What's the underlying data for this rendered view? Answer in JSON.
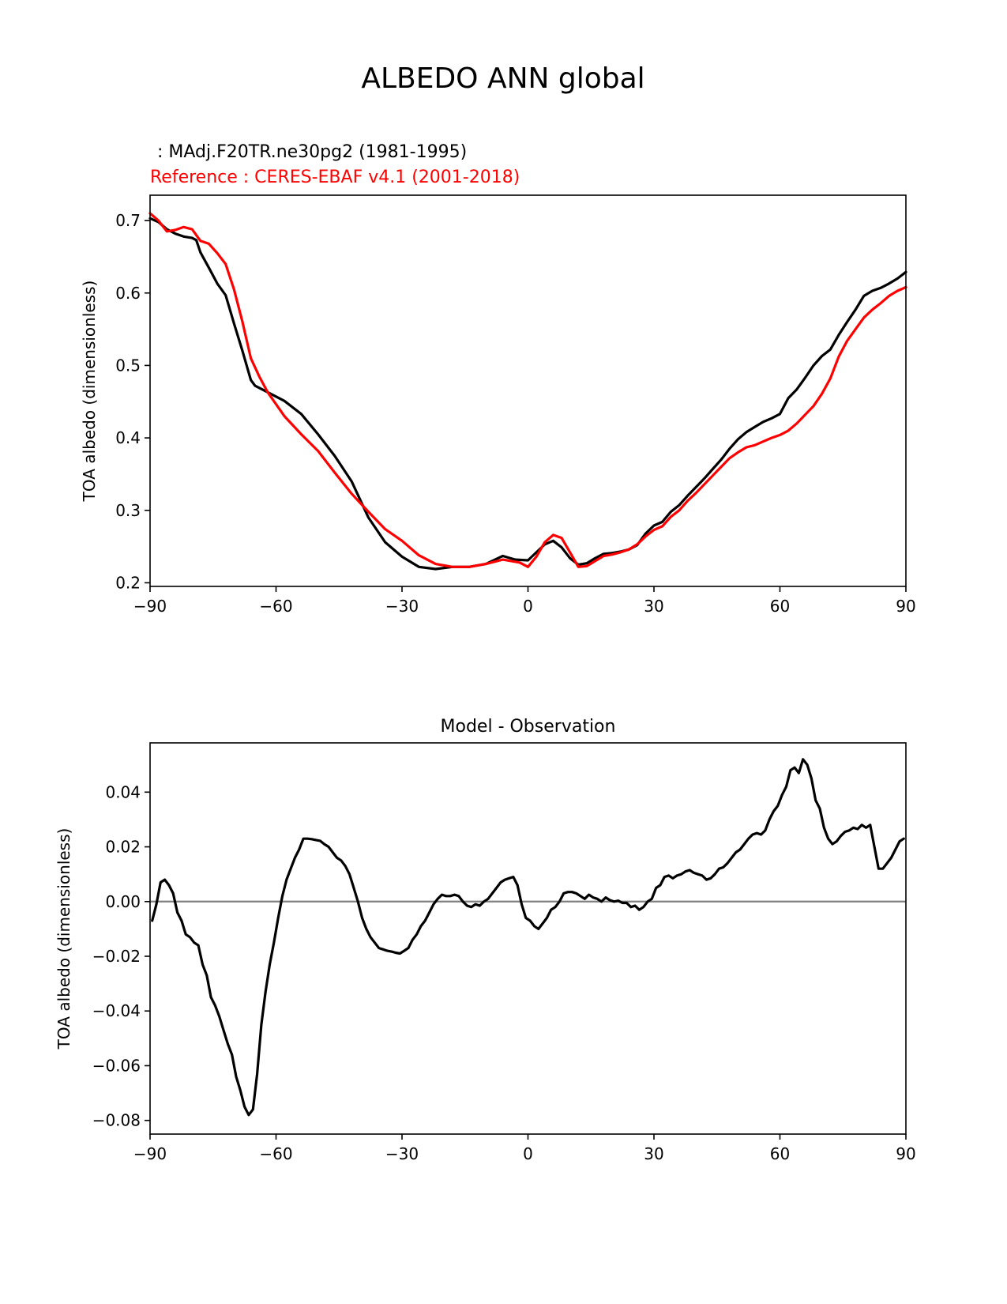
{
  "figure": {
    "title": "ALBEDO ANN global",
    "test_label": " : MAdj.F20TR.ne30pg2 (1981-1995)",
    "ref_label": "Reference : CERES-EBAF v4.1 (2001-2018)"
  },
  "colors": {
    "test": "#000000",
    "reference": "#ff0000",
    "zero_line": "#808080"
  },
  "chart_data": [
    {
      "type": "line",
      "title": "",
      "xlabel": "",
      "ylabel": "TOA albedo (dimensionless)",
      "xlim": [
        -90,
        90
      ],
      "ylim": [
        0.195,
        0.735
      ],
      "xticks": [
        -90,
        -60,
        -30,
        0,
        30,
        60,
        90
      ],
      "xtick_labels": [
        "−90",
        "−60",
        "−30",
        "0",
        "30",
        "60",
        "90"
      ],
      "yticks": [
        0.2,
        0.3,
        0.4,
        0.5,
        0.6,
        0.7
      ],
      "ytick_labels": [
        "0.2",
        "0.3",
        "0.4",
        "0.5",
        "0.6",
        "0.7"
      ],
      "series": [
        {
          "name": "MAdj.F20TR.ne30pg2 (1981-1995)",
          "color": "#000000",
          "x": [
            -90,
            -88,
            -86,
            -84,
            -82,
            -80,
            -79,
            -78,
            -76,
            -74,
            -72,
            -70,
            -68,
            -66,
            -65,
            -62,
            -58,
            -54,
            -50,
            -46,
            -42,
            -38,
            -34,
            -30,
            -26,
            -22,
            -18,
            -14,
            -10,
            -6,
            -3,
            0,
            2,
            4,
            6,
            8,
            10,
            12,
            14,
            16,
            18,
            20,
            22,
            24,
            26,
            28,
            30,
            32,
            34,
            36,
            38,
            40,
            42,
            44,
            46,
            48,
            50,
            52,
            54,
            56,
            58,
            60,
            62,
            64,
            66,
            68,
            70,
            72,
            74,
            76,
            78,
            80,
            82,
            84,
            86,
            88,
            90
          ],
          "y": [
            0.703,
            0.698,
            0.688,
            0.682,
            0.678,
            0.676,
            0.673,
            0.656,
            0.635,
            0.613,
            0.597,
            0.558,
            0.52,
            0.48,
            0.472,
            0.463,
            0.451,
            0.433,
            0.405,
            0.375,
            0.34,
            0.29,
            0.256,
            0.236,
            0.222,
            0.219,
            0.222,
            0.222,
            0.226,
            0.237,
            0.232,
            0.231,
            0.242,
            0.253,
            0.258,
            0.249,
            0.234,
            0.225,
            0.227,
            0.234,
            0.24,
            0.241,
            0.243,
            0.246,
            0.252,
            0.268,
            0.279,
            0.284,
            0.298,
            0.307,
            0.32,
            0.332,
            0.344,
            0.357,
            0.37,
            0.385,
            0.398,
            0.408,
            0.415,
            0.422,
            0.427,
            0.433,
            0.455,
            0.467,
            0.483,
            0.5,
            0.513,
            0.522,
            0.542,
            0.56,
            0.577,
            0.596,
            0.603,
            0.607,
            0.613,
            0.62,
            0.629
          ]
        },
        {
          "name": "CERES-EBAF v4.1 (2001-2018)",
          "color": "#ff0000",
          "x": [
            -90,
            -88,
            -86,
            -84,
            -82,
            -80,
            -78,
            -76,
            -74,
            -72,
            -70,
            -68,
            -66,
            -64,
            -62,
            -58,
            -54,
            -50,
            -46,
            -42,
            -38,
            -34,
            -30,
            -26,
            -22,
            -18,
            -14,
            -10,
            -6,
            -2,
            0,
            2,
            4,
            6,
            8,
            10,
            12,
            14,
            16,
            18,
            20,
            22,
            24,
            26,
            28,
            30,
            32,
            34,
            36,
            38,
            40,
            42,
            44,
            46,
            48,
            50,
            52,
            54,
            56,
            58,
            60,
            62,
            64,
            66,
            68,
            70,
            72,
            74,
            76,
            78,
            80,
            82,
            84,
            86,
            88,
            90
          ],
          "y": [
            0.71,
            0.7,
            0.685,
            0.687,
            0.691,
            0.688,
            0.672,
            0.668,
            0.655,
            0.64,
            0.605,
            0.56,
            0.51,
            0.485,
            0.463,
            0.43,
            0.405,
            0.382,
            0.352,
            0.323,
            0.298,
            0.274,
            0.258,
            0.238,
            0.226,
            0.222,
            0.222,
            0.226,
            0.232,
            0.228,
            0.222,
            0.236,
            0.256,
            0.266,
            0.262,
            0.242,
            0.222,
            0.223,
            0.23,
            0.237,
            0.239,
            0.242,
            0.246,
            0.253,
            0.264,
            0.273,
            0.278,
            0.291,
            0.3,
            0.313,
            0.324,
            0.336,
            0.348,
            0.36,
            0.372,
            0.38,
            0.387,
            0.39,
            0.395,
            0.4,
            0.404,
            0.41,
            0.42,
            0.432,
            0.444,
            0.461,
            0.482,
            0.512,
            0.534,
            0.55,
            0.566,
            0.577,
            0.586,
            0.596,
            0.603,
            0.608
          ]
        }
      ]
    },
    {
      "type": "line",
      "title": "Model - Observation",
      "xlabel": "",
      "ylabel": "TOA albedo (dimensionless)",
      "xlim": [
        -90,
        90
      ],
      "ylim": [
        -0.085,
        0.058
      ],
      "xticks": [
        -90,
        -60,
        -30,
        0,
        30,
        60,
        90
      ],
      "xtick_labels": [
        "−90",
        "−60",
        "−30",
        "0",
        "30",
        "60",
        "90"
      ],
      "yticks": [
        -0.08,
        -0.06,
        -0.04,
        -0.02,
        0.0,
        0.02,
        0.04
      ],
      "ytick_labels": [
        "−0.08",
        "−0.06",
        "−0.04",
        "−0.02",
        "0.00",
        "0.02",
        "0.04"
      ],
      "zero_line": 0,
      "series": [
        {
          "name": "Model - Observation",
          "color": "#000000",
          "x": [
            -89.5,
            -88.5,
            -87.5,
            -86.5,
            -85.5,
            -84.5,
            -83.5,
            -82.5,
            -81.5,
            -80.5,
            -79.5,
            -78.5,
            -77.5,
            -76.5,
            -75.5,
            -74.5,
            -73.5,
            -72.5,
            -71.5,
            -70.5,
            -69.5,
            -68.5,
            -67.5,
            -66.5,
            -65.5,
            -64.5,
            -63.5,
            -62.5,
            -61.5,
            -60.5,
            -59.5,
            -58.5,
            -57.5,
            -56.5,
            -55.5,
            -54.5,
            -53.5,
            -52.5,
            -51.5,
            -50.5,
            -49.5,
            -48.5,
            -47.5,
            -46.5,
            -45.5,
            -44.5,
            -43.5,
            -42.5,
            -41.5,
            -40.5,
            -39.5,
            -38.5,
            -37.5,
            -36.5,
            -35.5,
            -34.5,
            -33.5,
            -32.5,
            -31.5,
            -30.5,
            -29.5,
            -28.5,
            -27.5,
            -26.5,
            -25.5,
            -24.5,
            -23.5,
            -22.5,
            -21.5,
            -20.5,
            -19.5,
            -18.5,
            -17.5,
            -16.5,
            -15.5,
            -14.5,
            -13.5,
            -12.5,
            -11.5,
            -10.5,
            -9.5,
            -8.5,
            -7.5,
            -6.5,
            -5.5,
            -4.5,
            -3.5,
            -2.5,
            -1.5,
            -0.5,
            0.5,
            1.5,
            2.5,
            3.5,
            4.5,
            5.5,
            6.5,
            7.5,
            8.5,
            9.5,
            10.5,
            11.5,
            12.5,
            13.5,
            14.5,
            15.5,
            16.5,
            17.5,
            18.5,
            19.5,
            20.5,
            21.5,
            22.5,
            23.5,
            24.5,
            25.5,
            26.5,
            27.5,
            28.5,
            29.5,
            30.5,
            31.5,
            32.5,
            33.5,
            34.5,
            35.5,
            36.5,
            37.5,
            38.5,
            39.5,
            40.5,
            41.5,
            42.5,
            43.5,
            44.5,
            45.5,
            46.5,
            47.5,
            48.5,
            49.5,
            50.5,
            51.5,
            52.5,
            53.5,
            54.5,
            55.5,
            56.5,
            57.5,
            58.5,
            59.5,
            60.5,
            61.5,
            62.5,
            63.5,
            64.5,
            65.5,
            66.5,
            67.5,
            68.5,
            69.5,
            70.5,
            71.5,
            72.5,
            73.5,
            74.5,
            75.5,
            76.5,
            77.5,
            78.5,
            79.5,
            80.5,
            81.5,
            82.5,
            83.5,
            84.5,
            85.5,
            86.5,
            87.5,
            88.5,
            89.5
          ],
          "y": [
            -0.007,
            -0.001,
            0.007,
            0.008,
            0.006,
            0.003,
            -0.004,
            -0.007,
            -0.012,
            -0.013,
            -0.015,
            -0.016,
            -0.023,
            -0.027,
            -0.035,
            -0.038,
            -0.042,
            -0.047,
            -0.052,
            -0.056,
            -0.064,
            -0.069,
            -0.075,
            -0.078,
            -0.076,
            -0.063,
            -0.045,
            -0.033,
            -0.023,
            -0.015,
            -0.006,
            0.002,
            0.008,
            0.012,
            0.016,
            0.019,
            0.023,
            0.023,
            0.0228,
            0.0225,
            0.0222,
            0.021,
            0.02,
            0.018,
            0.016,
            0.015,
            0.013,
            0.01,
            0.005,
            0.0,
            -0.006,
            -0.01,
            -0.013,
            -0.015,
            -0.017,
            -0.0175,
            -0.018,
            -0.0183,
            -0.0187,
            -0.019,
            -0.018,
            -0.017,
            -0.014,
            -0.012,
            -0.009,
            -0.007,
            -0.004,
            -0.001,
            0.001,
            0.0025,
            0.002,
            0.002,
            0.0025,
            0.002,
            0.0,
            -0.0015,
            -0.002,
            -0.001,
            -0.0015,
            0.0,
            0.001,
            0.003,
            0.005,
            0.007,
            0.008,
            0.0085,
            0.009,
            0.006,
            -0.001,
            -0.006,
            -0.007,
            -0.009,
            -0.01,
            -0.008,
            -0.006,
            -0.003,
            -0.002,
            0.0,
            0.003,
            0.0035,
            0.0035,
            0.003,
            0.002,
            0.001,
            0.0025,
            0.0015,
            0.001,
            0.0,
            0.0015,
            0.0005,
            0.0,
            0.0003,
            -0.0005,
            -0.0005,
            -0.002,
            -0.0015,
            -0.003,
            -0.002,
            0.0,
            0.001,
            0.005,
            0.006,
            0.009,
            0.0095,
            0.0085,
            0.0095,
            0.01,
            0.011,
            0.0115,
            0.0105,
            0.01,
            0.0095,
            0.008,
            0.0085,
            0.01,
            0.012,
            0.0125,
            0.014,
            0.016,
            0.018,
            0.019,
            0.021,
            0.023,
            0.0245,
            0.025,
            0.0245,
            0.026,
            0.03,
            0.033,
            0.035,
            0.039,
            0.042,
            0.048,
            0.049,
            0.047,
            0.052,
            0.05,
            0.045,
            0.037,
            0.034,
            0.027,
            0.023,
            0.021,
            0.022,
            0.024,
            0.0255,
            0.026,
            0.027,
            0.0265,
            0.028,
            0.027,
            0.028,
            0.02,
            0.012,
            0.012,
            0.014,
            0.016,
            0.019,
            0.022,
            0.023
          ]
        }
      ]
    }
  ]
}
